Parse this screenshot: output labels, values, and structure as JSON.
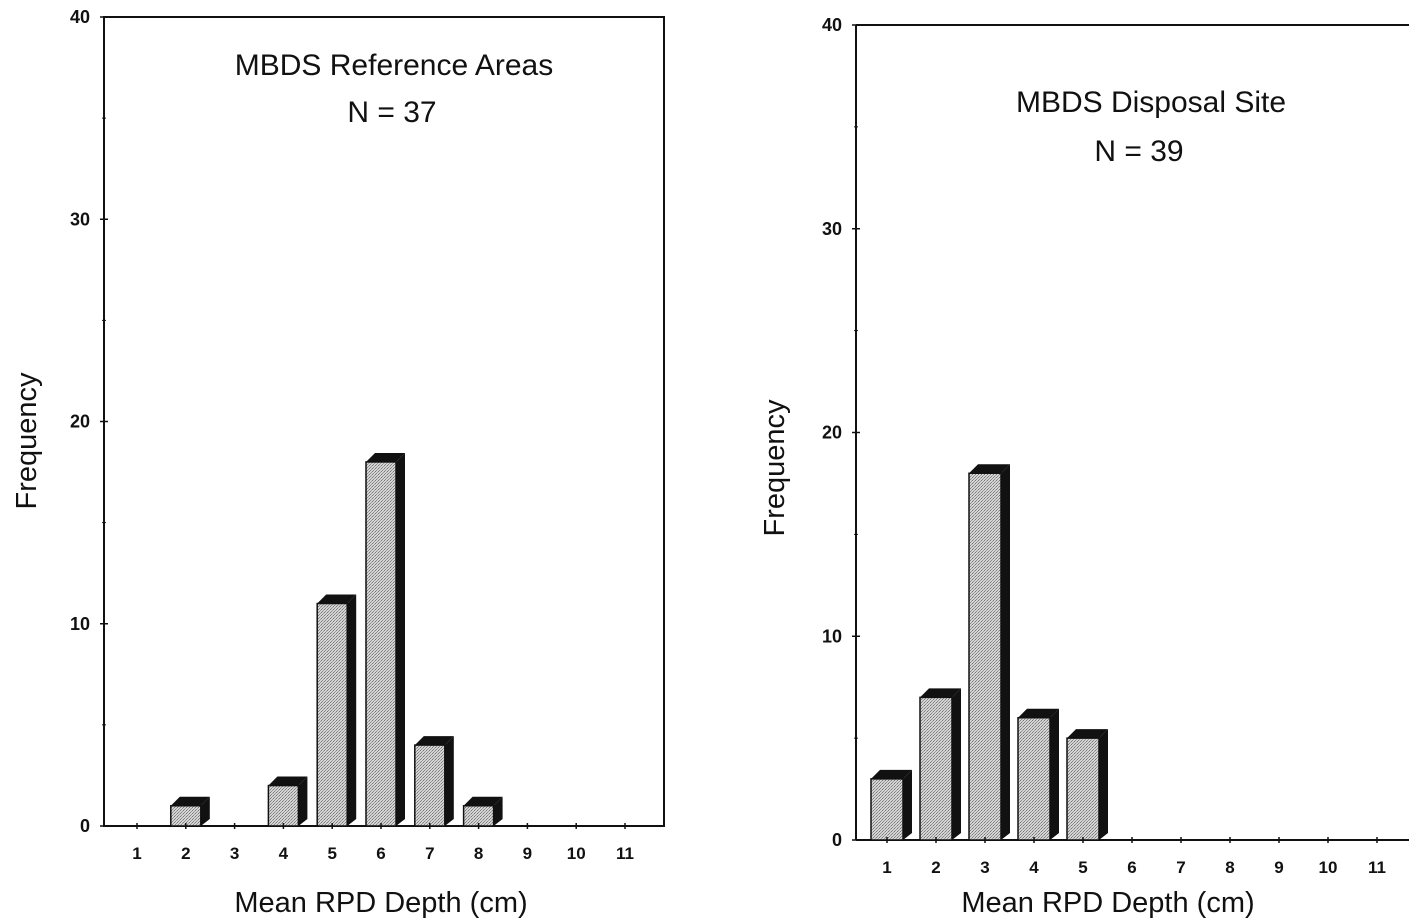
{
  "chart_data": [
    {
      "type": "bar",
      "title": "MBDS Reference Areas",
      "subtitle": "N = 37",
      "xlabel": "Mean RPD Depth (cm)",
      "ylabel": "Frequency",
      "categories": [
        "1",
        "2",
        "3",
        "4",
        "5",
        "6",
        "7",
        "8",
        "9",
        "10",
        "11"
      ],
      "values": [
        0,
        1,
        0,
        2,
        11,
        18,
        4,
        1,
        0,
        0,
        0
      ],
      "ylim": [
        0,
        40
      ],
      "yticks": [
        "0",
        "10",
        "20",
        "30",
        "40"
      ],
      "grid": false
    },
    {
      "type": "bar",
      "title": "MBDS Disposal Site",
      "subtitle": "N = 39",
      "xlabel": "Mean RPD Depth (cm)",
      "ylabel": "Frequency",
      "categories": [
        "1",
        "2",
        "3",
        "4",
        "5",
        "6",
        "7",
        "8",
        "9",
        "10",
        "11"
      ],
      "values": [
        3,
        7,
        18,
        6,
        5,
        0,
        0,
        0,
        0,
        0,
        0
      ],
      "ylim": [
        0,
        40
      ],
      "yticks": [
        "0",
        "10",
        "20",
        "30",
        "40"
      ],
      "grid": false
    }
  ],
  "colors": {
    "bar_face": "#c8c8c8",
    "bar_shadow": "#111111",
    "axis": "#111111"
  }
}
